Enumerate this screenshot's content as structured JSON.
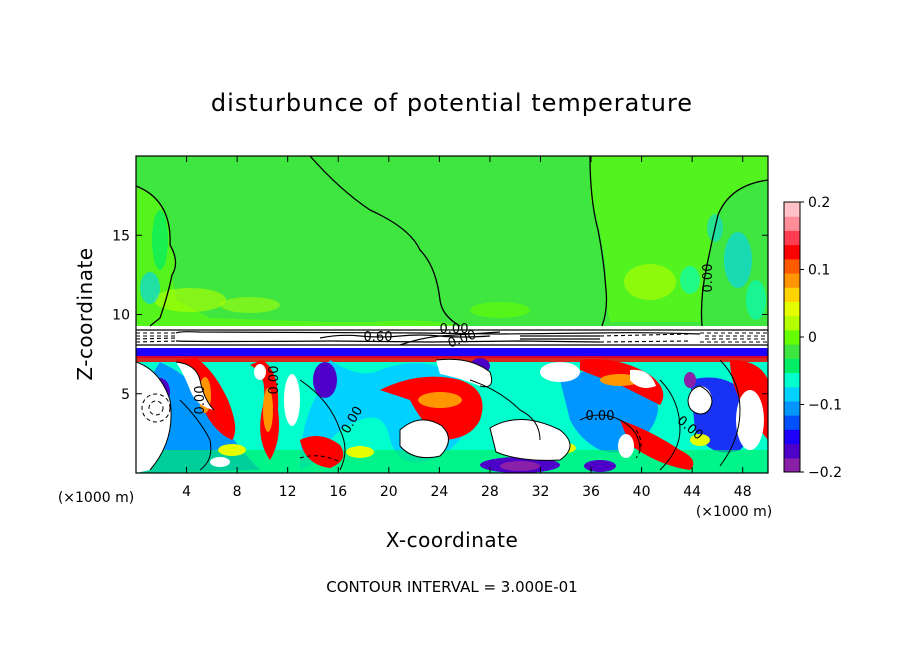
{
  "chart_data": {
    "type": "heatmap",
    "title": "disturbunce of potential temperature",
    "xlabel": "X-coordinate",
    "ylabel": "Z-coordinate",
    "x_unit": "(×1000 m)",
    "z_unit": "(×1000 m)",
    "xlim": [
      0,
      50
    ],
    "ylim": [
      0,
      20
    ],
    "x_ticks": [
      4,
      8,
      12,
      16,
      20,
      24,
      28,
      32,
      36,
      40,
      44,
      48
    ],
    "y_ticks": [
      5,
      10,
      15
    ],
    "colorbar": {
      "range": [
        -0.2,
        0.2
      ],
      "tick_labels": [
        "0.2",
        "0.1",
        "0",
        "−0.1",
        "−0.2"
      ],
      "tick_values": [
        0.2,
        0.1,
        0,
        -0.1,
        -0.2
      ],
      "colors": [
        "#8a1fa8",
        "#4d00c8",
        "#1e00ff",
        "#0050ff",
        "#0096ff",
        "#00d2ff",
        "#00ffcc",
        "#00ee66",
        "#40e640",
        "#66ff00",
        "#b4ff00",
        "#e6ff00",
        "#ffd200",
        "#ff9600",
        "#ff5a00",
        "#ff0000",
        "#ff3c50",
        "#ff8c96",
        "#ffc0c8"
      ]
    },
    "contour_labels": [
      "0.00",
      "0.00",
      "0.00",
      "0.00",
      "0.00",
      "0.00",
      "0.60",
      "0.00",
      "0.00"
    ],
    "footer": "CONTOUR INTERVAL = 3.000E-01"
  }
}
